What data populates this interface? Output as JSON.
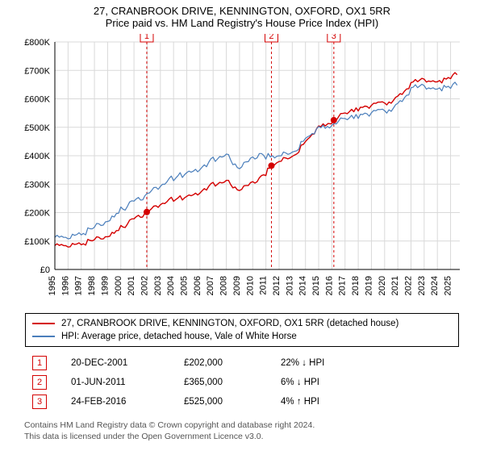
{
  "title_line1": "27, CRANBROOK DRIVE, KENNINGTON, OXFORD, OX1 5RR",
  "title_line2": "Price paid vs. HM Land Registry's House Price Index (HPI)",
  "chart": {
    "type": "line",
    "xlim": [
      1995,
      2025.7
    ],
    "ylim": [
      0,
      800000
    ],
    "ytick_step": 100000,
    "ytick_labels": [
      "£0",
      "£100K",
      "£200K",
      "£300K",
      "£400K",
      "£500K",
      "£600K",
      "£700K",
      "£800K"
    ],
    "xticks": [
      1995,
      1996,
      1997,
      1998,
      1999,
      2000,
      2001,
      2002,
      2003,
      2004,
      2005,
      2006,
      2007,
      2008,
      2009,
      2010,
      2011,
      2012,
      2013,
      2014,
      2015,
      2016,
      2017,
      2018,
      2019,
      2020,
      2021,
      2022,
      2023,
      2024,
      2025
    ],
    "grid_color": "#d9d9d9",
    "background_color": "#ffffff",
    "axis_color": "#000000",
    "series": [
      {
        "name": "property",
        "label": "27, CRANBROOK DRIVE, KENNINGTON, OXFORD, OX1 5RR (detached house)",
        "color": "#d40000",
        "line_width": 1.4,
        "points": [
          [
            1995,
            80000
          ],
          [
            1995.5,
            82000
          ],
          [
            1996,
            85000
          ],
          [
            1996.5,
            88000
          ],
          [
            1997,
            92000
          ],
          [
            1997.5,
            97000
          ],
          [
            1998,
            104000
          ],
          [
            1998.5,
            110000
          ],
          [
            1999,
            118000
          ],
          [
            1999.5,
            130000
          ],
          [
            2000,
            145000
          ],
          [
            2000.5,
            162000
          ],
          [
            2001,
            178000
          ],
          [
            2001.5,
            190000
          ],
          [
            2001.97,
            202000
          ],
          [
            2002.5,
            216000
          ],
          [
            2003,
            230000
          ],
          [
            2003.5,
            238000
          ],
          [
            2004,
            248000
          ],
          [
            2004.5,
            252000
          ],
          [
            2005,
            255000
          ],
          [
            2005.5,
            262000
          ],
          [
            2006,
            272000
          ],
          [
            2006.5,
            285000
          ],
          [
            2007,
            298000
          ],
          [
            2007.5,
            307000
          ],
          [
            2008,
            310000
          ],
          [
            2008.5,
            295000
          ],
          [
            2009,
            278000
          ],
          [
            2009.5,
            290000
          ],
          [
            2010,
            308000
          ],
          [
            2010.5,
            320000
          ],
          [
            2011,
            340000
          ],
          [
            2011.42,
            365000
          ],
          [
            2012,
            378000
          ],
          [
            2012.5,
            388000
          ],
          [
            2013,
            400000
          ],
          [
            2013.5,
            420000
          ],
          [
            2014,
            445000
          ],
          [
            2014.5,
            475000
          ],
          [
            2015,
            498000
          ],
          [
            2015.5,
            512000
          ],
          [
            2016.15,
            525000
          ],
          [
            2016.5,
            534000
          ],
          [
            2017,
            548000
          ],
          [
            2017.5,
            558000
          ],
          [
            2018,
            567000
          ],
          [
            2018.5,
            573000
          ],
          [
            2019,
            578000
          ],
          [
            2019.5,
            582000
          ],
          [
            2020,
            585000
          ],
          [
            2020.5,
            592000
          ],
          [
            2021,
            608000
          ],
          [
            2021.5,
            628000
          ],
          [
            2022,
            648000
          ],
          [
            2022.5,
            665000
          ],
          [
            2023,
            672000
          ],
          [
            2023.5,
            662000
          ],
          [
            2024,
            658000
          ],
          [
            2024.5,
            665000
          ],
          [
            2025,
            678000
          ],
          [
            2025.5,
            685000
          ]
        ]
      },
      {
        "name": "hpi",
        "label": "HPI: Average price, detached house, Vale of White Horse",
        "color": "#4a7ebb",
        "line_width": 1.2,
        "points": [
          [
            1995,
            108000
          ],
          [
            1995.5,
            110000
          ],
          [
            1996,
            115000
          ],
          [
            1996.5,
            120000
          ],
          [
            1997,
            128000
          ],
          [
            1997.5,
            136000
          ],
          [
            1998,
            148000
          ],
          [
            1998.5,
            158000
          ],
          [
            1999,
            172000
          ],
          [
            1999.5,
            188000
          ],
          [
            2000,
            208000
          ],
          [
            2000.5,
            225000
          ],
          [
            2001,
            240000
          ],
          [
            2001.5,
            252000
          ],
          [
            2002,
            265000
          ],
          [
            2002.5,
            280000
          ],
          [
            2003,
            295000
          ],
          [
            2003.5,
            308000
          ],
          [
            2004,
            322000
          ],
          [
            2004.5,
            332000
          ],
          [
            2005,
            338000
          ],
          [
            2005.5,
            345000
          ],
          [
            2006,
            355000
          ],
          [
            2006.5,
            368000
          ],
          [
            2007,
            385000
          ],
          [
            2007.5,
            398000
          ],
          [
            2008,
            402000
          ],
          [
            2008.5,
            378000
          ],
          [
            2009,
            355000
          ],
          [
            2009.5,
            372000
          ],
          [
            2010,
            395000
          ],
          [
            2010.5,
            405000
          ],
          [
            2011,
            400000
          ],
          [
            2011.5,
            395000
          ],
          [
            2012,
            398000
          ],
          [
            2012.5,
            405000
          ],
          [
            2013,
            415000
          ],
          [
            2013.5,
            432000
          ],
          [
            2014,
            455000
          ],
          [
            2014.5,
            478000
          ],
          [
            2015,
            495000
          ],
          [
            2015.5,
            505000
          ],
          [
            2016,
            510000
          ],
          [
            2016.5,
            518000
          ],
          [
            2017,
            528000
          ],
          [
            2017.5,
            536000
          ],
          [
            2018,
            542000
          ],
          [
            2018.5,
            548000
          ],
          [
            2019,
            552000
          ],
          [
            2019.5,
            555000
          ],
          [
            2020,
            558000
          ],
          [
            2020.5,
            565000
          ],
          [
            2021,
            582000
          ],
          [
            2021.5,
            605000
          ],
          [
            2022,
            628000
          ],
          [
            2022.5,
            645000
          ],
          [
            2023,
            650000
          ],
          [
            2023.5,
            637000
          ],
          [
            2024,
            632000
          ],
          [
            2024.5,
            638000
          ],
          [
            2025,
            645000
          ],
          [
            2025.5,
            648000
          ]
        ]
      }
    ],
    "sale_markers": [
      {
        "n": "1",
        "year": 2001.97,
        "price": 202000,
        "color": "#d40000"
      },
      {
        "n": "2",
        "year": 2011.42,
        "price": 365000,
        "color": "#d40000"
      },
      {
        "n": "3",
        "year": 2016.15,
        "price": 525000,
        "color": "#d40000"
      }
    ],
    "marker_line_color": "#d40000",
    "marker_dash": "3,3"
  },
  "legend": {
    "item1": "27, CRANBROOK DRIVE, KENNINGTON, OXFORD, OX1 5RR (detached house)",
    "item2": "HPI: Average price, detached house, Vale of White Horse",
    "color1": "#d40000",
    "color2": "#4a7ebb"
  },
  "sales": [
    {
      "n": "1",
      "date": "20-DEC-2001",
      "price": "£202,000",
      "diff": "22% ↓ HPI",
      "color": "#d40000"
    },
    {
      "n": "2",
      "date": "01-JUN-2011",
      "price": "£365,000",
      "diff": "6% ↓ HPI",
      "color": "#d40000"
    },
    {
      "n": "3",
      "date": "24-FEB-2016",
      "price": "£525,000",
      "diff": "4% ↑ HPI",
      "color": "#d40000"
    }
  ],
  "footer_line1": "Contains HM Land Registry data © Crown copyright and database right 2024.",
  "footer_line2": "This data is licensed under the Open Government Licence v3.0."
}
